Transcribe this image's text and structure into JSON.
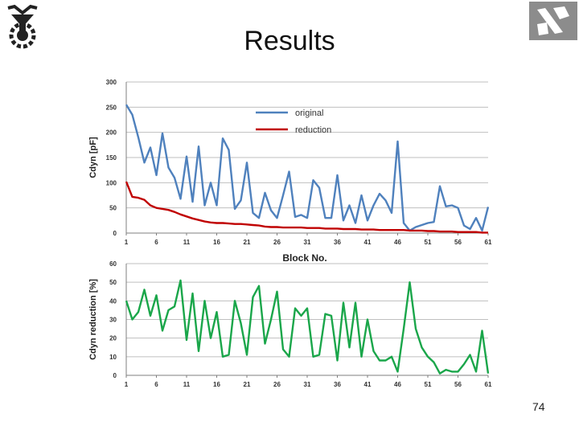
{
  "slide": {
    "title": "Results",
    "page_number": "74"
  },
  "logos": {
    "left": "technion-emblem-logo",
    "right": "ee-department-logo"
  },
  "colors": {
    "original": "#4f81bd",
    "reduction": "#c00000",
    "percent": "#1aa64a",
    "grid": "#bfbfbf",
    "axis": "#7f7f7f"
  },
  "chart_data": [
    {
      "type": "line",
      "ylabel": "Cdyn [pF]",
      "xlabel": "Block No.",
      "ylim": [
        0,
        300
      ],
      "yticks": [
        "0",
        "50",
        "100",
        "150",
        "200",
        "250",
        "300"
      ],
      "xlim": [
        1,
        61
      ],
      "xticks": [
        "1",
        "6",
        "11",
        "16",
        "21",
        "26",
        "31",
        "36",
        "41",
        "46",
        "51",
        "56",
        "61"
      ],
      "grid": true,
      "legend": "top-center",
      "series": [
        {
          "name": "original",
          "color": "#4f81bd",
          "values": [
            255,
            235,
            190,
            140,
            170,
            115,
            198,
            130,
            110,
            68,
            152,
            62,
            172,
            55,
            100,
            55,
            188,
            165,
            48,
            65,
            140,
            40,
            30,
            80,
            45,
            30,
            75,
            122,
            32,
            36,
            30,
            105,
            90,
            30,
            30,
            115,
            25,
            55,
            20,
            75,
            25,
            55,
            78,
            65,
            40,
            182,
            20,
            5,
            12,
            16,
            20,
            22,
            93,
            53,
            55,
            50,
            15,
            8,
            30,
            5,
            52
          ]
        },
        {
          "name": "reduction",
          "color": "#c00000",
          "values": [
            102,
            72,
            70,
            66,
            55,
            50,
            48,
            46,
            42,
            37,
            33,
            29,
            26,
            23,
            21,
            20,
            20,
            19,
            18,
            18,
            17,
            16,
            15,
            13,
            12,
            12,
            11,
            11,
            11,
            11,
            10,
            10,
            10,
            9,
            9,
            9,
            8,
            8,
            8,
            7,
            7,
            7,
            6,
            6,
            6,
            6,
            6,
            5,
            5,
            5,
            4,
            4,
            3,
            3,
            3,
            2,
            2,
            2,
            2,
            1,
            1
          ]
        }
      ]
    },
    {
      "type": "line",
      "ylabel": "Cdyn reduction [%]",
      "xlabel": "",
      "ylim": [
        0,
        60
      ],
      "yticks": [
        "0",
        "10",
        "20",
        "30",
        "40",
        "50",
        "60"
      ],
      "xlim": [
        1,
        61
      ],
      "xticks": [
        "1",
        "6",
        "11",
        "16",
        "21",
        "26",
        "31",
        "36",
        "41",
        "46",
        "51",
        "56",
        "61"
      ],
      "grid": true,
      "series": [
        {
          "name": "",
          "color": "#1aa64a",
          "values": [
            40,
            30,
            34,
            46,
            32,
            43,
            24,
            35,
            37,
            51,
            19,
            44,
            13,
            40,
            20,
            34,
            10,
            11,
            40,
            28,
            11,
            42,
            48,
            17,
            30,
            45,
            14,
            10,
            36,
            32,
            36,
            10,
            11,
            33,
            32,
            8,
            39,
            15,
            39,
            10,
            30,
            13,
            8,
            8,
            10,
            2,
            25,
            50,
            25,
            15,
            10,
            7,
            1,
            3,
            2,
            2,
            6,
            11,
            2,
            24,
            1
          ]
        }
      ]
    }
  ]
}
